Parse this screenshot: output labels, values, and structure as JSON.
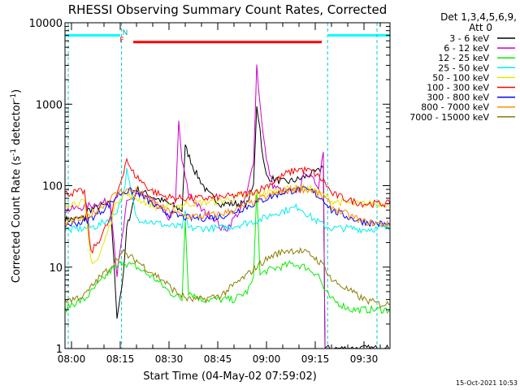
{
  "chart_data": {
    "type": "line",
    "title": "RHESSI Observing Summary Count Rates, Corrected",
    "xlabel": "Start Time (04-May-02 07:59:02)",
    "ylabel": "Corrected Count Rate (s",
    "ylabel_sup1": "-1",
    "ylabel_mid": " detector",
    "ylabel_sup2": "-1",
    "ylabel_end": ")",
    "yscale": "log",
    "ylim": [
      1,
      10000
    ],
    "xlim_minutes": [
      -2,
      98
    ],
    "xticks": [
      {
        "label": "08:00",
        "minutes": 0
      },
      {
        "label": "08:15",
        "minutes": 15
      },
      {
        "label": "08:30",
        "minutes": 30
      },
      {
        "label": "08:45",
        "minutes": 45
      },
      {
        "label": "09:00",
        "minutes": 60
      },
      {
        "label": "09:15",
        "minutes": 75
      },
      {
        "label": "09:30",
        "minutes": 90
      }
    ],
    "yticks": [
      {
        "label": "1",
        "value": 1
      },
      {
        "label": "10",
        "value": 10
      },
      {
        "label": "100",
        "value": 100
      },
      {
        "label": "1000",
        "value": 1000
      },
      {
        "label": "10000",
        "value": 10000
      }
    ],
    "legend_header": [
      "Det 1,3,4,5,6,9,",
      "Att 0"
    ],
    "legend_position": "right",
    "series": [
      {
        "name": "3 - 6 keV",
        "color": "#000000",
        "x": [
          -2,
          4,
          5,
          12,
          14,
          16,
          17,
          20,
          26,
          30,
          34,
          35,
          38,
          42,
          46,
          50,
          54,
          56,
          57,
          58,
          59,
          60,
          62,
          66,
          70,
          74,
          76,
          77.5,
          78,
          80,
          85,
          90,
          95,
          98
        ],
        "y": [
          38,
          40,
          50,
          60,
          2.5,
          8,
          30,
          90,
          70,
          60,
          50,
          300,
          150,
          80,
          60,
          60,
          60,
          100,
          1000,
          500,
          200,
          130,
          120,
          110,
          120,
          140,
          150,
          180,
          1,
          1,
          1,
          1,
          1,
          1
        ]
      },
      {
        "name": "6 - 12 keV",
        "color": "#cc00cc",
        "x": [
          -2,
          4,
          8,
          12,
          14,
          16,
          17,
          20,
          26,
          30,
          32,
          33,
          34,
          36,
          40,
          44,
          46,
          48,
          50,
          52,
          54,
          56,
          57,
          58,
          60,
          62,
          66,
          70,
          72,
          74,
          76,
          77.5,
          78,
          80,
          86,
          90,
          95,
          98
        ],
        "y": [
          50,
          55,
          60,
          65,
          8,
          30,
          60,
          80,
          60,
          40,
          60,
          600,
          200,
          80,
          50,
          40,
          30,
          30,
          40,
          50,
          80,
          200,
          3000,
          1000,
          200,
          100,
          80,
          90,
          150,
          120,
          100,
          280,
          0.8,
          0.8,
          0.8,
          0.8,
          0.8,
          0.8
        ]
      },
      {
        "name": "12 - 25 keV",
        "color": "#00ee00",
        "x": [
          -2,
          0,
          4,
          8,
          12,
          14,
          16,
          17,
          20,
          26,
          30,
          34,
          35,
          36,
          40,
          46,
          50,
          54,
          56,
          57,
          58,
          60,
          64,
          68,
          72,
          76,
          78,
          80,
          86,
          90,
          95,
          98
        ],
        "y": [
          3,
          3.5,
          4,
          6,
          9,
          10,
          12,
          11,
          10,
          7,
          5,
          4,
          40,
          5,
          4,
          4,
          4,
          5,
          7,
          100,
          8,
          9,
          10,
          11,
          10,
          8,
          5,
          4,
          3,
          3,
          3,
          3
        ]
      },
      {
        "name": "25 - 50 keV",
        "color": "#00eeee",
        "x": [
          -2,
          4,
          8,
          12,
          14,
          16,
          17,
          20,
          26,
          30,
          34,
          35,
          36,
          40,
          46,
          50,
          54,
          58,
          62,
          66,
          70,
          74,
          78,
          80,
          86,
          90,
          95,
          98
        ],
        "y": [
          28,
          30,
          32,
          40,
          50,
          80,
          150,
          40,
          35,
          32,
          31,
          45,
          30,
          30,
          30,
          32,
          35,
          38,
          45,
          50,
          55,
          40,
          32,
          30,
          30,
          29,
          30,
          30
        ]
      },
      {
        "name": "50 - 100 keV",
        "color": "#e6e600",
        "x": [
          -2,
          4,
          6,
          8,
          10,
          12,
          14,
          16,
          20,
          26,
          30,
          36,
          40,
          46,
          50,
          54,
          58,
          62,
          66,
          70,
          74,
          78,
          80,
          86,
          90,
          95,
          98
        ],
        "y": [
          60,
          62,
          12,
          12,
          20,
          35,
          65,
          80,
          70,
          55,
          55,
          60,
          62,
          65,
          70,
          75,
          80,
          85,
          90,
          95,
          90,
          75,
          65,
          60,
          60,
          60,
          60
        ]
      },
      {
        "name": "100 - 300 keV",
        "color": "#ff0000",
        "x": [
          -2,
          4,
          6,
          8,
          10,
          12,
          14,
          16,
          17,
          18,
          20,
          24,
          28,
          32,
          36,
          40,
          46,
          50,
          54,
          58,
          62,
          66,
          70,
          74,
          78,
          80,
          86,
          90,
          95,
          98
        ],
        "y": [
          80,
          85,
          15,
          20,
          28,
          40,
          80,
          150,
          220,
          160,
          130,
          90,
          75,
          70,
          70,
          70,
          72,
          75,
          80,
          90,
          110,
          140,
          160,
          150,
          110,
          80,
          65,
          60,
          60,
          60
        ]
      },
      {
        "name": "300 - 800 keV",
        "color": "#0000ff",
        "x": [
          -2,
          4,
          8,
          12,
          14,
          16,
          20,
          26,
          30,
          36,
          40,
          46,
          50,
          54,
          58,
          62,
          66,
          70,
          74,
          78,
          80,
          86,
          90,
          95,
          98
        ],
        "y": [
          33,
          36,
          45,
          60,
          75,
          85,
          85,
          55,
          45,
          40,
          40,
          42,
          48,
          55,
          65,
          75,
          85,
          90,
          85,
          65,
          50,
          40,
          36,
          34,
          33
        ]
      },
      {
        "name": "800 - 7000 keV",
        "color": "#ff8c00",
        "x": [
          -2,
          4,
          8,
          12,
          14,
          16,
          20,
          26,
          30,
          36,
          40,
          46,
          50,
          54,
          58,
          62,
          66,
          70,
          74,
          78,
          80,
          86,
          90,
          95,
          98
        ],
        "y": [
          35,
          40,
          50,
          70,
          80,
          88,
          88,
          60,
          48,
          42,
          42,
          45,
          50,
          58,
          68,
          78,
          88,
          92,
          88,
          70,
          55,
          42,
          36,
          34,
          33
        ]
      },
      {
        "name": "7000 - 15000 keV",
        "color": "#8b7d00",
        "x": [
          -2,
          0,
          4,
          8,
          12,
          14,
          16,
          17,
          20,
          24,
          28,
          32,
          36,
          40,
          46,
          50,
          54,
          58,
          62,
          66,
          70,
          74,
          78,
          80,
          86,
          90,
          95,
          98
        ],
        "y": [
          4,
          4,
          4.5,
          7,
          10,
          13,
          15,
          14,
          12,
          9,
          7,
          5,
          4,
          4,
          4.5,
          6,
          8,
          11,
          14,
          16,
          16,
          14,
          10,
          7,
          5,
          4,
          3.5,
          3.5
        ]
      }
    ],
    "top_bars": [
      {
        "color": "#00ffff",
        "x": [
          -2,
          15
        ],
        "y": 7000
      },
      {
        "color": "#ff0000",
        "x": [
          19,
          77
        ],
        "y": 5800
      },
      {
        "color": "#00ffff",
        "x": [
          79,
          98
        ],
        "y": 7000
      }
    ],
    "markers": [
      {
        "label": "N",
        "color": "#00aaaa",
        "minutes": 16.5
      },
      {
        "label": "F",
        "color": "#ff0000",
        "minutes": 15.5
      }
    ],
    "vlines_cyan": [
      -1,
      15.4,
      78.8,
      94
    ]
  },
  "footer": {
    "timestamp": "15-Oct-2021 10:53"
  }
}
